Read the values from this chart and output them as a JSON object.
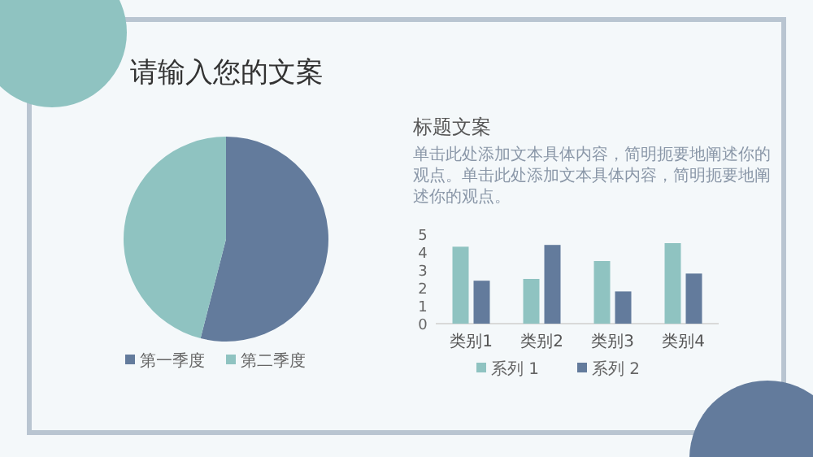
{
  "chart_data": [
    {
      "type": "pie",
      "title": "请输入您的文案",
      "categories": [
        "第一季度",
        "第二季度"
      ],
      "values": [
        54,
        46
      ],
      "colors": [
        "#637b9c",
        "#8fc3c1"
      ],
      "legend": "bottom"
    },
    {
      "type": "bar",
      "title": "标题文案",
      "subtitle": "单击此处添加文本具体内容，简明扼要地阐述你的观点。单击此处添加文本具体内容，简明扼要地阐述你的观点。",
      "categories": [
        "类别1",
        "类别2",
        "类别3",
        "类别4"
      ],
      "series": [
        {
          "name": "系列 1",
          "color": "#8fc3c1",
          "values": [
            4.3,
            2.5,
            3.5,
            4.5
          ]
        },
        {
          "name": "系列 2",
          "color": "#637b9c",
          "values": [
            2.4,
            4.4,
            1.8,
            2.8
          ]
        }
      ],
      "ylim": [
        0,
        5
      ],
      "yticks": [
        0,
        1,
        2,
        3,
        4,
        5
      ],
      "legend": "bottom"
    }
  ]
}
